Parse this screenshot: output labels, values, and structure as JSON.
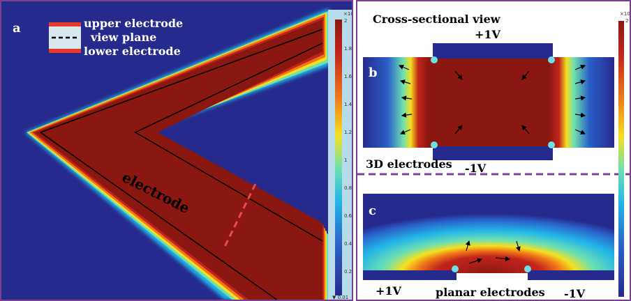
{
  "panel_a": {
    "letter": "a",
    "legend": {
      "upper": "upper electrode",
      "view": "view plane",
      "lower": "lower electrode"
    },
    "electrode_text": "electrode",
    "colorbar": {
      "exponent": "×10",
      "ticks": [
        "2",
        "1.8",
        "1.6",
        "1.4",
        "1.2",
        "1",
        "0.8",
        "0.6",
        "0.4",
        "0.2",
        "▼ 0.01"
      ]
    }
  },
  "panel_b": {
    "letter": "b",
    "title": "Cross-sectional view",
    "top_voltage": "+1V",
    "bottom_voltage": "-1V",
    "caption": "3D electrodes"
  },
  "panel_c": {
    "letter": "c",
    "left_voltage": "+1V",
    "right_voltage": "-1V",
    "caption": "planar electrodes"
  },
  "right_colorbar": {
    "exponent": "×10",
    "top_tick": "2"
  },
  "colors": {
    "field_low": "#262a8c",
    "field_high": "#8b1810",
    "border": "#7b3f8f",
    "divider": "#7b3f8f",
    "electrode_red": "#e8372b",
    "view_plane": "#e94b4b"
  }
}
